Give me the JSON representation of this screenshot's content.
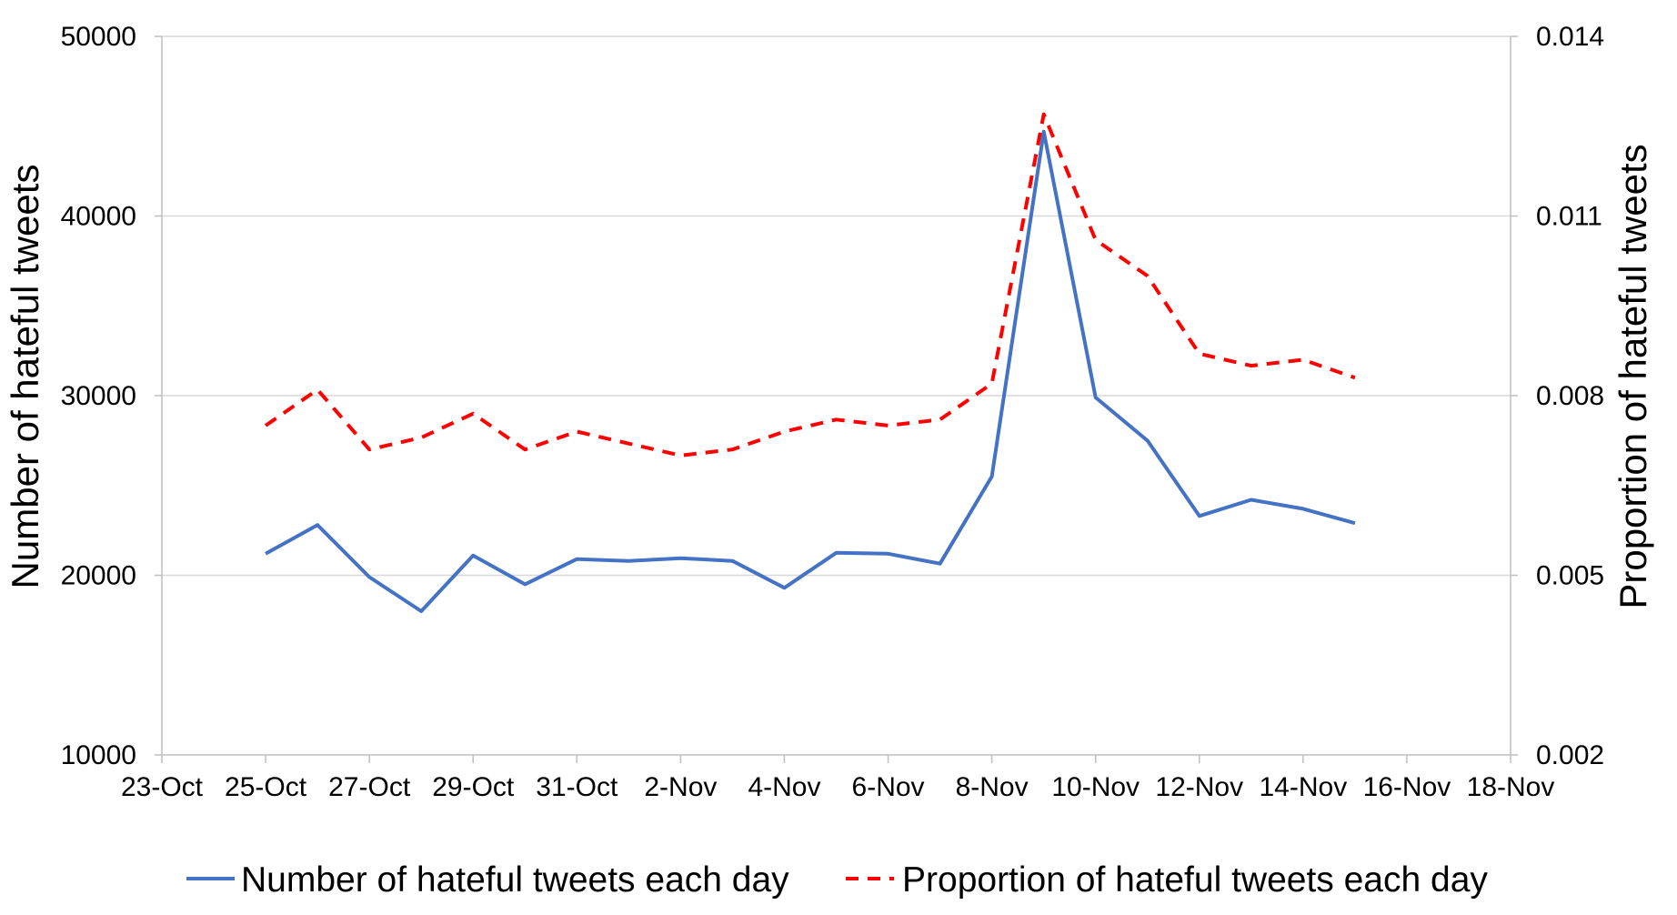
{
  "chart_data": {
    "type": "line",
    "ylabel_left": "Number of hateful tweets",
    "ylabel_right": "Proportion of hateful tweets",
    "ylim_left": [
      10000,
      50000
    ],
    "ylim_right": [
      0.002,
      0.014
    ],
    "yticks_left": [
      "10000",
      "20000",
      "30000",
      "40000",
      "50000"
    ],
    "yticks_right": [
      "0.002",
      "0.005",
      "0.008",
      "0.011",
      "0.014"
    ],
    "yticks_left_values": [
      10000,
      20000,
      30000,
      40000,
      50000
    ],
    "yticks_right_values": [
      0.002,
      0.005,
      0.008,
      0.011,
      0.014
    ],
    "xticks": [
      "23-Oct",
      "25-Oct",
      "27-Oct",
      "29-Oct",
      "31-Oct",
      "2-Nov",
      "4-Nov",
      "6-Nov",
      "8-Nov",
      "10-Nov",
      "12-Nov",
      "14-Nov",
      "16-Nov",
      "18-Nov"
    ],
    "x": [
      "25-Oct",
      "26-Oct",
      "27-Oct",
      "28-Oct",
      "29-Oct",
      "30-Oct",
      "31-Oct",
      "1-Nov",
      "2-Nov",
      "3-Nov",
      "4-Nov",
      "5-Nov",
      "6-Nov",
      "7-Nov",
      "8-Nov",
      "9-Nov",
      "10-Nov",
      "11-Nov",
      "12-Nov",
      "13-Nov",
      "14-Nov",
      "15-Nov"
    ],
    "x_domain_dates": [
      "23-Oct",
      "18-Nov"
    ],
    "grid": true,
    "legend_position": "bottom",
    "series": [
      {
        "name": "Number of hateful tweets each day",
        "axis": "left",
        "color": "#4472C4",
        "style": "solid",
        "values": [
          21200,
          22800,
          19900,
          18000,
          21100,
          19500,
          20900,
          20800,
          20950,
          20800,
          19300,
          21250,
          21200,
          20650,
          25500,
          44700,
          29900,
          27500,
          23300,
          24200,
          23700,
          22900
        ]
      },
      {
        "name": "Proportion of hateful tweets each day",
        "axis": "right",
        "color": "#FF0000",
        "style": "dashed",
        "values": [
          0.0075,
          0.0081,
          0.0071,
          0.0073,
          0.0077,
          0.0071,
          0.0074,
          0.0072,
          0.007,
          0.0071,
          0.0074,
          0.0076,
          0.0075,
          0.0076,
          0.0082,
          0.0127,
          0.0106,
          0.01,
          0.0087,
          0.0085,
          0.0086,
          0.0083
        ]
      }
    ]
  }
}
